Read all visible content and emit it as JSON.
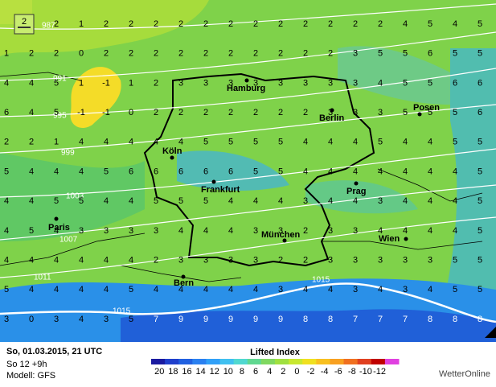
{
  "badge": "2",
  "grid": {
    "rows": [
      [
        null,
        null,
        2,
        1,
        2,
        2,
        2,
        2,
        2,
        2,
        2,
        2,
        2,
        2,
        2,
        2,
        4,
        5,
        4,
        5
      ],
      [
        1,
        2,
        2,
        0,
        2,
        2,
        2,
        2,
        2,
        2,
        2,
        2,
        2,
        2,
        3,
        5,
        5,
        6,
        5,
        5
      ],
      [
        4,
        4,
        5,
        1,
        -1,
        1,
        2,
        3,
        3,
        3,
        3,
        3,
        3,
        3,
        3,
        4,
        5,
        5,
        6,
        6
      ],
      [
        6,
        4,
        5,
        -1,
        -1,
        0,
        2,
        2,
        2,
        2,
        2,
        2,
        2,
        3,
        3,
        3,
        5,
        5,
        5,
        6
      ],
      [
        2,
        2,
        1,
        4,
        4,
        4,
        4,
        4,
        5,
        5,
        5,
        5,
        4,
        4,
        4,
        5,
        4,
        4,
        5,
        5
      ],
      [
        5,
        4,
        4,
        4,
        5,
        6,
        6,
        6,
        6,
        6,
        5,
        5,
        4,
        4,
        4,
        4,
        4,
        4,
        4,
        5
      ],
      [
        4,
        4,
        5,
        5,
        4,
        4,
        5,
        5,
        5,
        4,
        4,
        4,
        3,
        4,
        4,
        3,
        4,
        4,
        4,
        5
      ],
      [
        4,
        5,
        4,
        3,
        3,
        3,
        3,
        4,
        4,
        4,
        3,
        3,
        2,
        3,
        3,
        4,
        4,
        4,
        4,
        5
      ],
      [
        4,
        4,
        4,
        4,
        4,
        4,
        2,
        3,
        3,
        3,
        3,
        2,
        2,
        3,
        3,
        3,
        3,
        3,
        5,
        5
      ],
      [
        5,
        4,
        4,
        4,
        4,
        5,
        4,
        4,
        4,
        4,
        4,
        3,
        4,
        4,
        3,
        4,
        3,
        4,
        5,
        5
      ],
      [
        3,
        0,
        3,
        4,
        3,
        5,
        7,
        9,
        9,
        9,
        9,
        9,
        8,
        8,
        7,
        7,
        7,
        8,
        8,
        8
      ]
    ]
  },
  "isobars": [
    "987",
    "991",
    "995",
    "999",
    "1003",
    "1007",
    "1011",
    "1015",
    "1015"
  ],
  "cities": [
    "Hamburg",
    "Berlin",
    "Posen",
    "Köln",
    "Frankfurt",
    "Prag",
    "Paris",
    "München",
    "Wien",
    "Bern"
  ],
  "footer": {
    "date": "So, 01.03.2015, 21 UTC",
    "run": "So 12 +9h",
    "model": "Modell: GFS",
    "brand": "WetterOnline"
  },
  "legend": {
    "title": "Lifted Index",
    "labels": [
      20,
      18,
      16,
      14,
      12,
      10,
      8,
      6,
      4,
      2,
      0,
      -2,
      -4,
      -6,
      -8,
      -10,
      -12
    ],
    "colors": [
      "#1a1aa0",
      "#1f3fcc",
      "#2060e0",
      "#2a80f0",
      "#30a0f8",
      "#40c0f0",
      "#50d8d0",
      "#60d890",
      "#80d860",
      "#a0e040",
      "#c8e830",
      "#f0e020",
      "#f8c020",
      "#f8a020",
      "#f07020",
      "#e04020",
      "#c00000",
      "#e040e0"
    ]
  }
}
